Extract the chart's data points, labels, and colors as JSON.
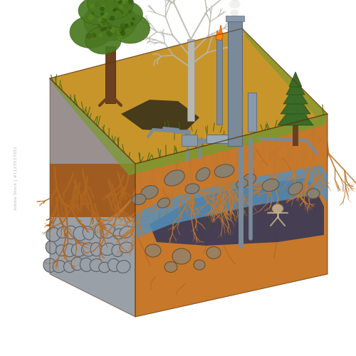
{
  "bg_color": "#ffffff",
  "figsize": [
    5.0,
    5.0
  ],
  "dpi": 100,
  "dry_soil_color": "#c8952a",
  "grass_color": "#7a9a30",
  "soil_root_color": "#a05c20",
  "soil_brown_color": "#8a4a18",
  "rock_wall_color": "#9aa0a8",
  "rock_wall_dark": "#6a7278",
  "water_color": "#4a88b8",
  "water_light": "#6aaad0",
  "deep_soil_color": "#c8782a",
  "dark_layer_color": "#282838",
  "contamination_blob": "#383858",
  "crack_color": "#b06020",
  "root_color": "#c07830",
  "root_dark": "#8a4a18",
  "pipe_color": "#7a8a9a",
  "pipe_dark": "#5a6a7a",
  "pipe_light": "#9aaaba",
  "tree_trunk": "#6a4020",
  "tree_green1": "#4a7820",
  "tree_green2": "#3a6015",
  "tree_green3": "#5a8a2a",
  "dead_tree_color": "#b8b8b0",
  "small_tree_green": "#3a6a28",
  "stone_fill": "#8a8878",
  "stone_edge": "#5a5848",
  "cobble_fill": "#9aa0a8",
  "cobble_edge": "#5a6068",
  "pollution_dark": "#252518",
  "moss_color": "#5a7030",
  "ember_color": "#ff8800",
  "smoke_color": "#c8c8c0"
}
